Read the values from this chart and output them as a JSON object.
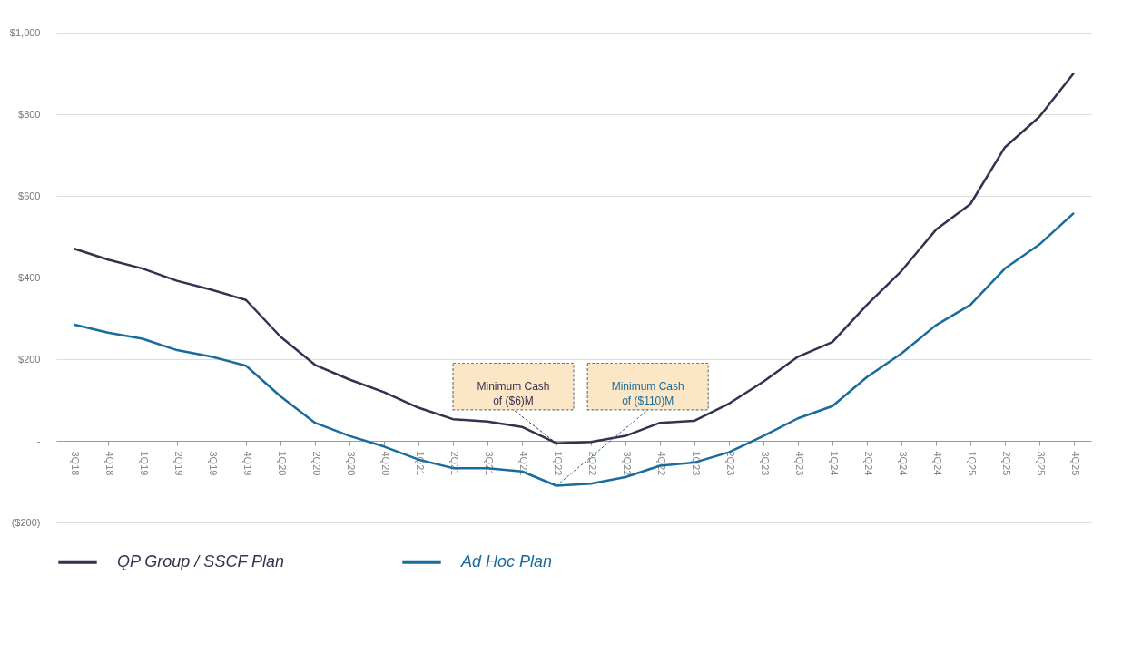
{
  "chart_data": {
    "type": "line",
    "categories": [
      "3Q18",
      "4Q18",
      "1Q19",
      "2Q19",
      "3Q19",
      "4Q19",
      "1Q20",
      "2Q20",
      "3Q20",
      "4Q20",
      "1Q21",
      "2Q21",
      "3Q21",
      "4Q21",
      "1Q22",
      "2Q22",
      "3Q22",
      "4Q22",
      "1Q23",
      "2Q23",
      "3Q23",
      "4Q23",
      "1Q24",
      "2Q24",
      "3Q24",
      "4Q24",
      "1Q25",
      "2Q25",
      "3Q25",
      "4Q25"
    ],
    "series": [
      {
        "name": "QP Group / SSCF Plan",
        "color": "#3b2f4f",
        "values": [
          471,
          444,
          422,
          392,
          370,
          345,
          255,
          186,
          150,
          119,
          81,
          53,
          47,
          34,
          -6,
          -3,
          12,
          44,
          49,
          91,
          145,
          206,
          242,
          333,
          416,
          517,
          580,
          719,
          794,
          901
        ]
      },
      {
        "name": "Ad Hoc Plan",
        "color": "#1a6b9e",
        "values": [
          285,
          265,
          250,
          222,
          206,
          184,
          109,
          44,
          12,
          -14,
          -46,
          -67,
          -67,
          -75,
          -110,
          -105,
          -89,
          -61,
          -53,
          -28,
          12,
          55,
          85,
          156,
          214,
          283,
          333,
          422,
          481,
          558
        ]
      }
    ],
    "ylim": [
      -200,
      1000
    ],
    "yticks": [
      {
        "value": -200,
        "label": "($200)"
      },
      {
        "value": 0,
        "label": "-"
      },
      {
        "value": 200,
        "label": "$200"
      },
      {
        "value": 400,
        "label": "$400"
      },
      {
        "value": 600,
        "label": "$600"
      },
      {
        "value": 800,
        "label": "$800"
      },
      {
        "value": 1000,
        "label": "$1,000"
      }
    ],
    "grid": "y",
    "legend": "bottom",
    "annotations": [
      {
        "text": "Minimum Cash\nof ($6)M",
        "x": "1Q22",
        "y": -6
      },
      {
        "text": "Minimum Cash\nof ($110)M",
        "x": "1Q22",
        "y": -110
      }
    ]
  }
}
